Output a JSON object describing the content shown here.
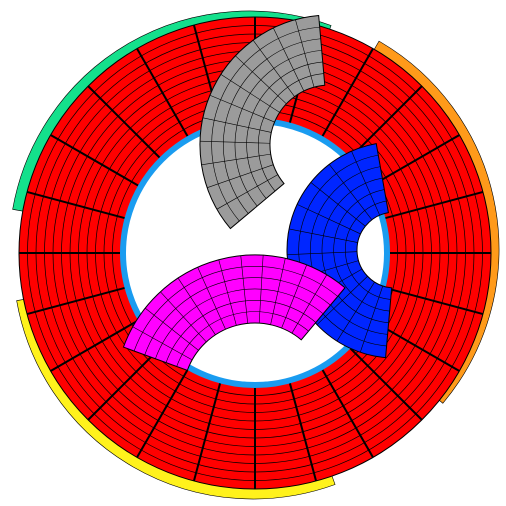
{
  "diagram": {
    "colors": {
      "ring": "#ff0000",
      "liner": "#1a9cf0",
      "green": "#14e08c",
      "orange": "#ff9a1a",
      "yellow": "#fff21c",
      "gray": "#9b9b9b",
      "blue": "#0026ff",
      "magenta": "#ff00ff",
      "line": "#000000",
      "background": "#ffffff"
    },
    "ring": {
      "radial_segments": 24,
      "concentric_rings": 12
    },
    "inner_blocks": [
      {
        "name": "gray-block",
        "color": "gray"
      },
      {
        "name": "blue-block",
        "color": "blue"
      },
      {
        "name": "magenta-block",
        "color": "magenta"
      }
    ],
    "outer_bands": [
      {
        "name": "green-band",
        "color": "green"
      },
      {
        "name": "orange-band",
        "color": "orange"
      },
      {
        "name": "yellow-band",
        "color": "yellow"
      }
    ]
  }
}
